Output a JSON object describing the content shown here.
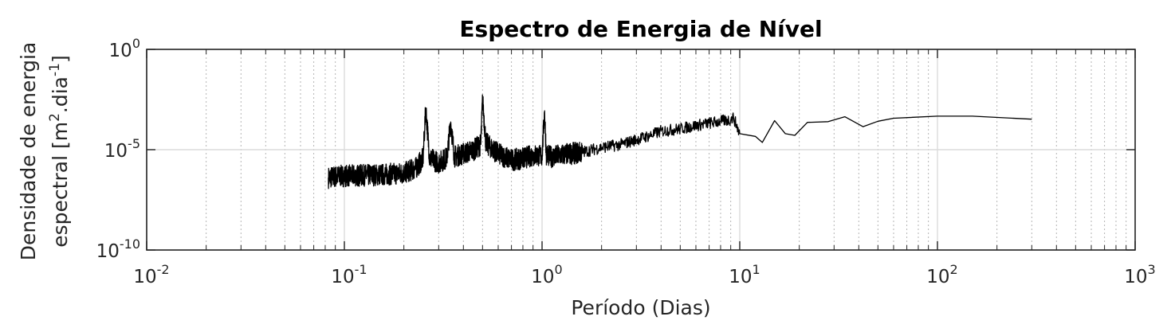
{
  "chart_data": {
    "type": "line",
    "title": "Espectro de Energia de Nível",
    "xlabel": "Período (Dias)",
    "ylabel_line1": "Densidade de energia",
    "ylabel_line2_prefix": "espectral [m",
    "ylabel_line2_exp1": "2",
    "ylabel_line2_mid": ".dia",
    "ylabel_line2_exp2": "-1",
    "ylabel_line2_suffix": "]",
    "x_scale": "log",
    "y_scale": "log",
    "xlim": [
      0.01,
      1000
    ],
    "ylim": [
      1e-10,
      1
    ],
    "x_ticks": [
      {
        "base": "10",
        "exp": "-2",
        "value": 0.01
      },
      {
        "base": "10",
        "exp": "-1",
        "value": 0.1
      },
      {
        "base": "10",
        "exp": "0",
        "value": 1
      },
      {
        "base": "10",
        "exp": "1",
        "value": 10
      },
      {
        "base": "10",
        "exp": "2",
        "value": 100
      },
      {
        "base": "10",
        "exp": "3",
        "value": 1000
      }
    ],
    "y_ticks": [
      {
        "base": "10",
        "exp": "-10",
        "value": 1e-10
      },
      {
        "base": "10",
        "exp": "-5",
        "value": 1e-05
      },
      {
        "base": "10",
        "exp": "0",
        "value": 1
      }
    ],
    "grid": true,
    "minor_grid_x": true,
    "line_color": "#000000",
    "series": [
      {
        "x": [
          0.083,
          0.09,
          0.1,
          0.12,
          0.15,
          0.2,
          0.23,
          0.25,
          0.258,
          0.27,
          0.3,
          0.33,
          0.345,
          0.36,
          0.4,
          0.45,
          0.49,
          0.5,
          0.52,
          0.55,
          0.6,
          0.7,
          0.8,
          0.9,
          1.0,
          1.03,
          1.05,
          1.1,
          1.3,
          1.6,
          2.0,
          2.5,
          3.0,
          3.5,
          4.0,
          5.0,
          6.0,
          7.0,
          8.0,
          9.0,
          9.3,
          10.0,
          12.0,
          13.0,
          15.0,
          17.0,
          19.0,
          22.0,
          28.0,
          34.0,
          42.0,
          50.0,
          60.0,
          100.0,
          150.0,
          300.0
        ],
        "y": [
          4.05e-07,
          4.6e-07,
          5e-07,
          5.2e-07,
          5.6e-07,
          6.8e-07,
          1.2e-06,
          3.6e-06,
          0.0012,
          3.7e-06,
          2.3e-06,
          3.9e-06,
          0.00024,
          4.6e-06,
          6.3e-06,
          9.7e-06,
          1.82e-05,
          0.0033,
          2.14e-05,
          1.31e-05,
          6.2e-06,
          3.1e-06,
          3.7e-06,
          5.3e-06,
          5e-06,
          0.00087,
          6e-06,
          4.4e-06,
          5.8e-06,
          7.5e-06,
          1.3e-05,
          1.8e-05,
          3.2e-05,
          5e-05,
          8.3e-05,
          0.00011,
          0.00016,
          0.00021,
          0.00026,
          0.00031,
          0.0004,
          6.3e-05,
          4.6e-05,
          2.3e-05,
          0.00028,
          6.3e-05,
          5.2e-05,
          0.00023,
          0.00025,
          0.00044,
          0.00014,
          0.00026,
          0.00037,
          0.00047,
          0.00047,
          0.00033
        ]
      }
    ]
  }
}
